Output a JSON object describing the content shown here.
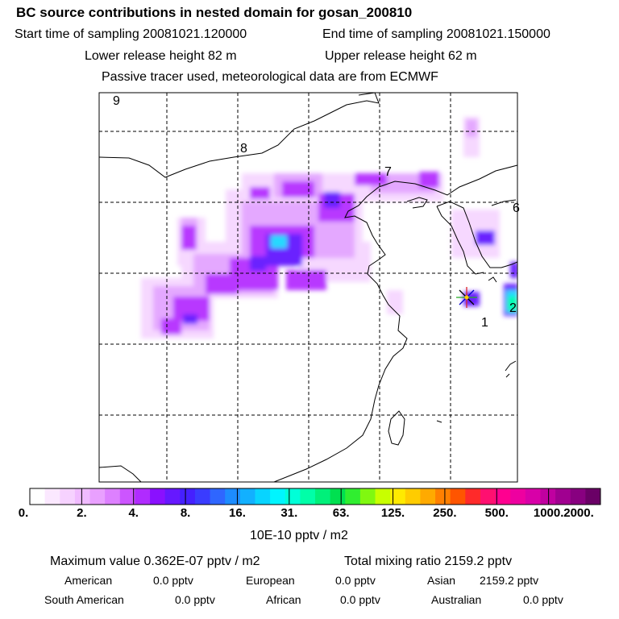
{
  "header": {
    "title": "BC  source contributions in nested domain for gosan_200810",
    "start": "Start time of sampling 20081021.120000",
    "end": "End time of sampling 20081021.150000",
    "lower": "Lower release height   82 m",
    "upper": "Upper release height   62 m",
    "tracer": "Passive tracer used, meteorological data are from ECMWF"
  },
  "map": {
    "labels": [
      "9",
      "8",
      "7",
      "6",
      "1",
      "2"
    ]
  },
  "colorbar": {
    "ticks": [
      "0.",
      "2.",
      "4.",
      "8.",
      "16.",
      "31.",
      "63.",
      "125.",
      "250.",
      "500.",
      "1000.",
      "2000."
    ],
    "unit": "10E-10 pptv / m2",
    "colors": [
      "#ffffff",
      "#fbe8ff",
      "#f6d2ff",
      "#f0bbff",
      "#e9a0ff",
      "#dd80ff",
      "#cc55ff",
      "#b02bff",
      "#8a10ff",
      "#6618ff",
      "#4520ff",
      "#3a3cff",
      "#2f66ff",
      "#1d8cff",
      "#12b0ff",
      "#08d4ff",
      "#00f5ff",
      "#00ffd8",
      "#00ffa8",
      "#00f07a",
      "#00e050",
      "#30ee30",
      "#80f810",
      "#c8ff00",
      "#ffea00",
      "#ffcc00",
      "#ffaa00",
      "#ff8000",
      "#ff5500",
      "#ff2a2a",
      "#ff1070",
      "#ff0090",
      "#ee00a0",
      "#d800a8",
      "#c000a0",
      "#a00090",
      "#880080",
      "#6a0066"
    ]
  },
  "stats": {
    "max": "Maximum value  0.362E-07 pptv / m2",
    "total": "Total mixing ratio      2159.2 pptv",
    "regions": [
      {
        "name": "American",
        "value": "0.0 pptv"
      },
      {
        "name": "European",
        "value": "0.0 pptv"
      },
      {
        "name": "Asian",
        "value": "2159.2 pptv"
      },
      {
        "name": "South American",
        "value": "0.0 pptv"
      },
      {
        "name": "African",
        "value": "0.0 pptv"
      },
      {
        "name": "Australian",
        "value": "0.0 pptv"
      }
    ]
  }
}
